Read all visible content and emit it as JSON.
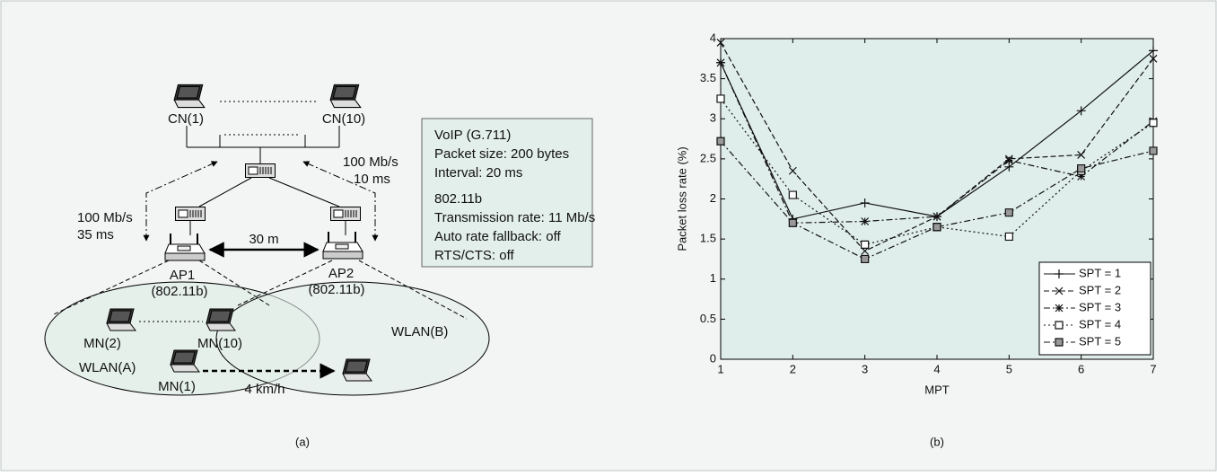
{
  "diagram": {
    "cn": [
      "CN(1)",
      "CN(10)"
    ],
    "links": {
      "right": [
        "100 Mb/s",
        "10 ms"
      ],
      "left": [
        "100 Mb/s",
        "35 ms"
      ]
    },
    "distance": "30 m",
    "ap": [
      {
        "name": "AP1",
        "standard": "(802.11b)"
      },
      {
        "name": "AP2",
        "standard": "(802.11b)"
      }
    ],
    "mn": [
      "MN(2)",
      "MN(10)",
      "MN(1)"
    ],
    "wlan": [
      "WLAN(A)",
      "WLAN(B)"
    ],
    "speed": "4 km/h",
    "info": [
      "VoIP (G.711)",
      "Packet size: 200 bytes",
      "Interval: 20 ms",
      "802.11b",
      "Transmission rate: 11 Mb/s",
      "Auto rate fallback: off",
      "RTS/CTS: off"
    ],
    "caption": "(a)"
  },
  "chart_data": {
    "type": "line",
    "caption": "(b)",
    "xlabel": "MPT",
    "ylabel": "Packet loss rate (%)",
    "x": [
      1,
      2,
      3,
      4,
      5,
      6,
      7
    ],
    "xlim": [
      1,
      7
    ],
    "xticks": [
      1,
      2,
      3,
      4,
      5,
      6,
      7
    ],
    "ylim": [
      0,
      4
    ],
    "yticks": [
      0,
      0.5,
      1,
      1.5,
      2,
      2.5,
      3,
      3.5,
      4
    ],
    "background": "#dfeeea",
    "legend": "lower right",
    "series": [
      {
        "name": "SPT = 1",
        "color": "#111111",
        "dash": "solid",
        "marker": "plus",
        "values": [
          3.7,
          1.75,
          1.95,
          1.78,
          2.4,
          3.1,
          3.85
        ]
      },
      {
        "name": "SPT = 2",
        "color": "#111111",
        "dash": "dashed",
        "marker": "x",
        "values": [
          3.95,
          2.35,
          1.35,
          1.78,
          2.5,
          2.55,
          3.75
        ]
      },
      {
        "name": "SPT = 3",
        "color": "#111111",
        "dash": "dashdot",
        "marker": "star",
        "values": [
          3.7,
          1.7,
          1.72,
          1.78,
          2.48,
          2.28,
          2.97
        ]
      },
      {
        "name": "SPT = 4",
        "color": "#111111",
        "dash": "dotted",
        "marker": "square",
        "values": [
          3.25,
          2.05,
          1.43,
          1.65,
          1.53,
          2.35,
          2.95
        ]
      },
      {
        "name": "SPT = 5",
        "color": "#111111",
        "dash": "dashdot",
        "marker": "filled-square",
        "values": [
          2.72,
          1.7,
          1.25,
          1.65,
          1.83,
          2.38,
          2.6
        ]
      }
    ]
  }
}
